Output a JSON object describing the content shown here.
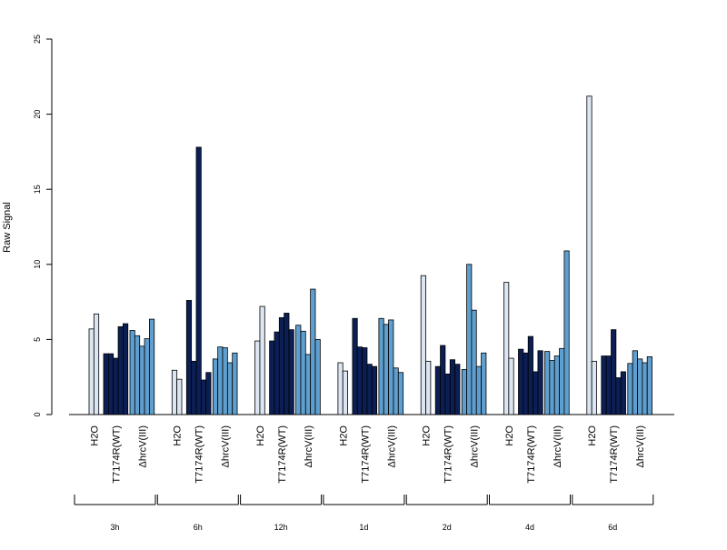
{
  "chart_data": {
    "type": "bar",
    "title": "",
    "ylabel": "Raw Signal",
    "ylim": [
      0,
      25
    ],
    "yticks": [
      0,
      5,
      10,
      15,
      20,
      25
    ],
    "grid": false,
    "legend": "none",
    "colors": {
      "H2O": "#dce6f2",
      "T7174R(WT)": "#0c1f55",
      "ΔhrcV(III)": "#5f9fcf"
    },
    "groups": [
      {
        "label": "3h",
        "samples": [
          {
            "name": "H2O",
            "values": [
              5.7,
              6.7
            ]
          },
          {
            "name": "T7174R(WT)",
            "values": [
              4.05,
              4.05,
              3.75,
              5.85,
              6.05
            ]
          },
          {
            "name": "ΔhrcV(III)",
            "values": [
              5.6,
              5.25,
              4.55,
              5.05,
              6.35
            ]
          }
        ]
      },
      {
        "label": "6h",
        "samples": [
          {
            "name": "H2O",
            "values": [
              2.95,
              2.35
            ]
          },
          {
            "name": "T7174R(WT)",
            "values": [
              7.6,
              3.55,
              17.8,
              2.3,
              2.8
            ]
          },
          {
            "name": "ΔhrcV(III)",
            "values": [
              3.7,
              4.5,
              4.45,
              3.45,
              4.1
            ]
          }
        ]
      },
      {
        "label": "12h",
        "samples": [
          {
            "name": "H2O",
            "values": [
              4.9,
              7.2
            ]
          },
          {
            "name": "T7174R(WT)",
            "values": [
              4.9,
              5.5,
              6.45,
              6.75,
              5.65
            ]
          },
          {
            "name": "ΔhrcV(III)",
            "values": [
              5.95,
              5.55,
              4.0,
              8.35,
              5.0
            ]
          }
        ]
      },
      {
        "label": "1d",
        "samples": [
          {
            "name": "H2O",
            "values": [
              3.45,
              2.9
            ]
          },
          {
            "name": "T7174R(WT)",
            "values": [
              6.4,
              4.5,
              4.45,
              3.35,
              3.2
            ]
          },
          {
            "name": "ΔhrcV(III)",
            "values": [
              6.4,
              6.0,
              6.3,
              3.1,
              2.8
            ]
          }
        ]
      },
      {
        "label": "2d",
        "samples": [
          {
            "name": "H2O",
            "values": [
              9.25,
              3.55
            ]
          },
          {
            "name": "T7174R(WT)",
            "values": [
              3.2,
              4.6,
              2.7,
              3.65,
              3.35
            ]
          },
          {
            "name": "ΔhrcV(III)",
            "values": [
              3.0,
              10.0,
              6.95,
              3.2,
              4.1
            ]
          }
        ]
      },
      {
        "label": "4d",
        "samples": [
          {
            "name": "H2O",
            "values": [
              8.8,
              3.75
            ]
          },
          {
            "name": "T7174R(WT)",
            "values": [
              4.35,
              4.1,
              5.2,
              2.85,
              4.25
            ]
          },
          {
            "name": "ΔhrcV(III)",
            "values": [
              4.2,
              3.6,
              3.9,
              4.4,
              10.9
            ]
          }
        ]
      },
      {
        "label": "6d",
        "samples": [
          {
            "name": "H2O",
            "values": [
              21.2,
              3.55
            ]
          },
          {
            "name": "T7174R(WT)",
            "values": [
              3.9,
              3.9,
              5.65,
              2.45,
              2.85
            ]
          },
          {
            "name": "ΔhrcV(III)",
            "values": [
              3.4,
              4.25,
              3.7,
              3.45,
              3.85
            ]
          }
        ]
      }
    ]
  }
}
